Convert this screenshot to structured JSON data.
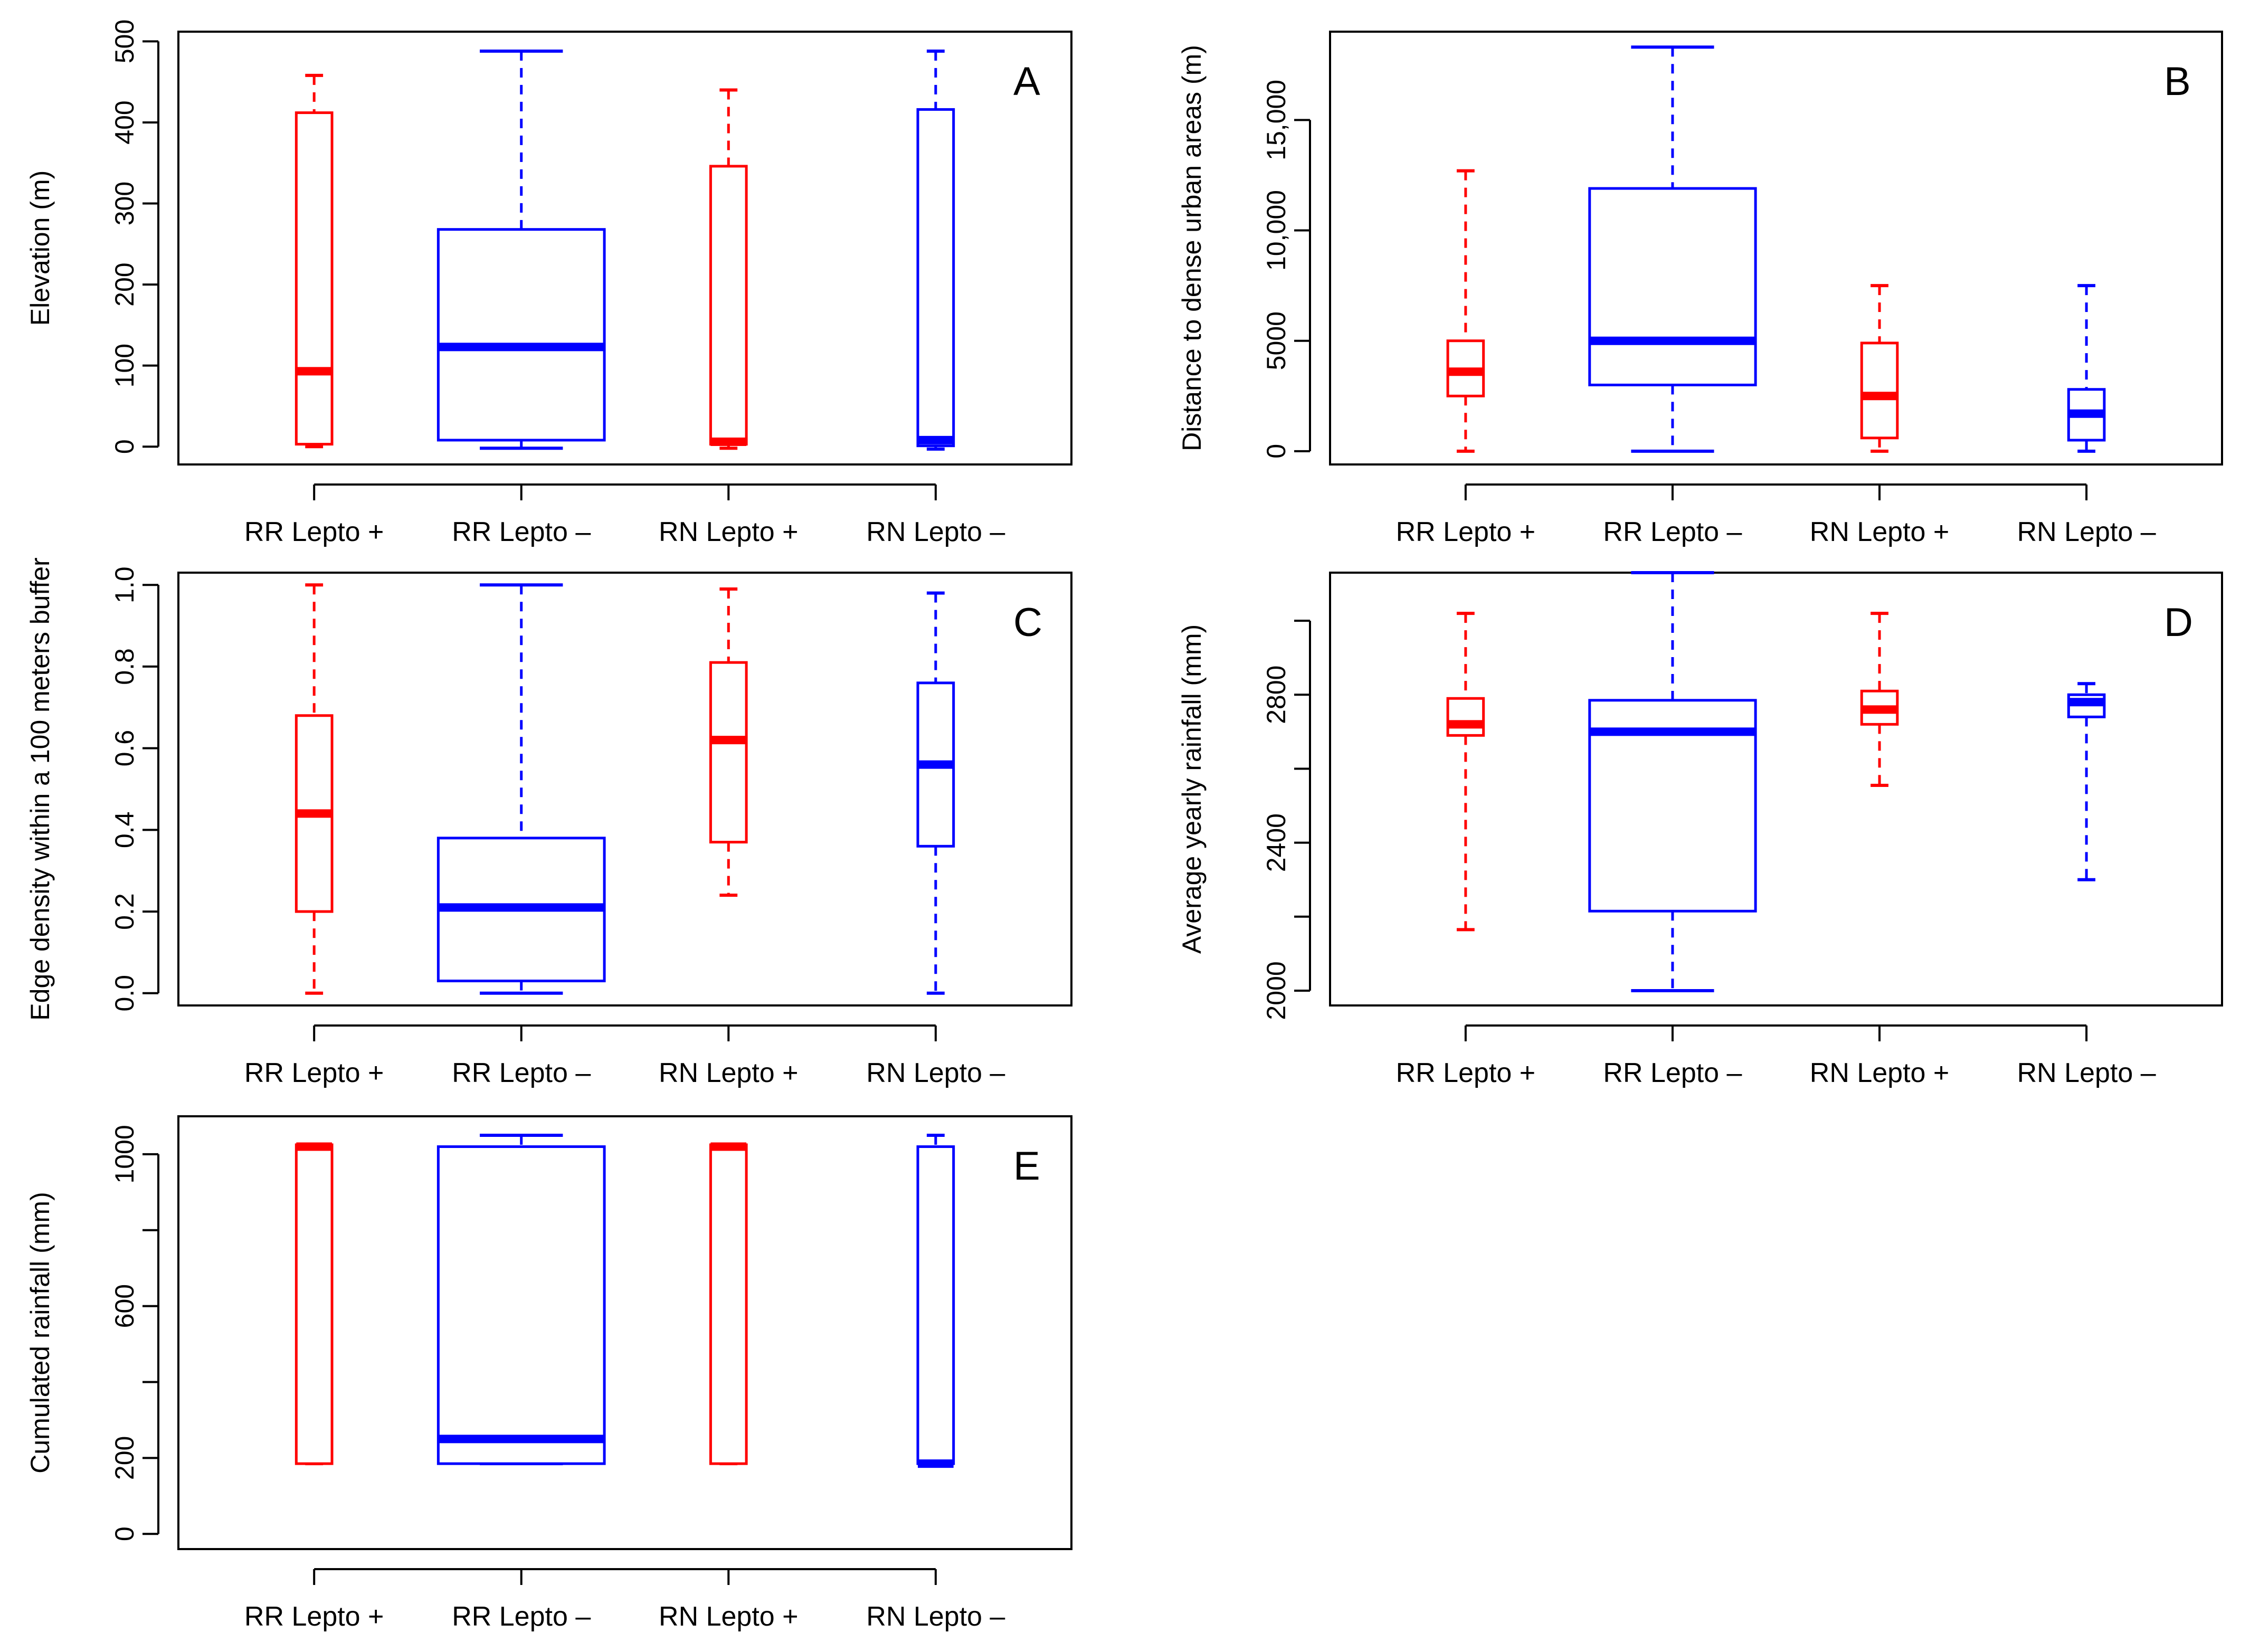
{
  "colors": {
    "positive": "#ff0000",
    "negative": "#0000ff",
    "axis": "#000000"
  },
  "chart_data": [
    {
      "type": "box",
      "panel_label": "A",
      "ylabel": "Elevation (m)",
      "ylim": [
        -22,
        512
      ],
      "yticks": [
        0,
        100,
        200,
        300,
        400,
        500
      ],
      "ytick_labels": [
        "0",
        "100",
        "200",
        "300",
        "400",
        "500"
      ],
      "categories": [
        "RR Lepto +",
        "RR Lepto –",
        "RN Lepto +",
        "RN Lepto –"
      ],
      "series_colors": [
        "#ff0000",
        "#0000ff",
        "#ff0000",
        "#0000ff"
      ],
      "boxes": [
        {
          "whisker_low": 0,
          "q1": 3,
          "median": 93,
          "q3": 412,
          "whisker_high": 458
        },
        {
          "whisker_low": -2,
          "q1": 8,
          "median": 123,
          "q3": 268,
          "whisker_high": 488
        },
        {
          "whisker_low": -2,
          "q1": 3,
          "median": 6,
          "q3": 346,
          "whisker_high": 440
        },
        {
          "whisker_low": -3,
          "q1": 1,
          "median": 8,
          "q3": 416,
          "whisker_high": 488
        }
      ]
    },
    {
      "type": "box",
      "panel_label": "B",
      "ylabel": "Distance to dense urban areas (m)",
      "ylim": [
        -600,
        19000
      ],
      "yticks": [
        0,
        5000,
        10000,
        15000
      ],
      "ytick_labels": [
        "0",
        "5000",
        "10,000",
        "15,000"
      ],
      "categories": [
        "RR Lepto +",
        "RR Lepto –",
        "RN Lepto +",
        "RN Lepto –"
      ],
      "series_colors": [
        "#ff0000",
        "#0000ff",
        "#ff0000",
        "#0000ff"
      ],
      "boxes": [
        {
          "whisker_low": 0,
          "q1": 2500,
          "median": 3600,
          "q3": 5000,
          "whisker_high": 12700
        },
        {
          "whisker_low": 0,
          "q1": 3000,
          "median": 5000,
          "q3": 11900,
          "whisker_high": 18300
        },
        {
          "whisker_low": 0,
          "q1": 600,
          "median": 2500,
          "q3": 4900,
          "whisker_high": 7500
        },
        {
          "whisker_low": 0,
          "q1": 500,
          "median": 1700,
          "q3": 2800,
          "whisker_high": 7500
        }
      ]
    },
    {
      "type": "box",
      "panel_label": "C",
      "ylabel": "Edge density within a 100 meters buffer",
      "ylim": [
        -0.03,
        1.03
      ],
      "yticks": [
        0,
        0.2,
        0.4,
        0.6,
        0.8,
        1.0
      ],
      "ytick_labels": [
        "0.0",
        "0.2",
        "0.4",
        "0.6",
        "0.8",
        "1.0"
      ],
      "categories": [
        "RR Lepto +",
        "RR Lepto –",
        "RN Lepto +",
        "RN Lepto –"
      ],
      "series_colors": [
        "#ff0000",
        "#0000ff",
        "#ff0000",
        "#0000ff"
      ],
      "boxes": [
        {
          "whisker_low": 0.0,
          "q1": 0.2,
          "median": 0.44,
          "q3": 0.68,
          "whisker_high": 1.0
        },
        {
          "whisker_low": 0.0,
          "q1": 0.03,
          "median": 0.21,
          "q3": 0.38,
          "whisker_high": 1.0
        },
        {
          "whisker_low": 0.24,
          "q1": 0.37,
          "median": 0.62,
          "q3": 0.81,
          "whisker_high": 0.99
        },
        {
          "whisker_low": 0.0,
          "q1": 0.36,
          "median": 0.56,
          "q3": 0.76,
          "whisker_high": 0.98
        }
      ]
    },
    {
      "type": "box",
      "panel_label": "D",
      "ylabel": "Average yearly rainfall (mm)",
      "ylim": [
        1960,
        3130
      ],
      "yticks": [
        2000,
        2200,
        2400,
        2600,
        2800,
        3000
      ],
      "ytick_labels": [
        "2000",
        "",
        "2400",
        "",
        "2800",
        ""
      ],
      "categories": [
        "RR Lepto +",
        "RR Lepto –",
        "RN Lepto +",
        "RN Lepto –"
      ],
      "series_colors": [
        "#ff0000",
        "#0000ff",
        "#ff0000",
        "#0000ff"
      ],
      "boxes": [
        {
          "whisker_low": 2165,
          "q1": 2690,
          "median": 2720,
          "q3": 2790,
          "whisker_high": 3020
        },
        {
          "whisker_low": 2000,
          "q1": 2215,
          "median": 2700,
          "q3": 2785,
          "whisker_high": 3130
        },
        {
          "whisker_low": 2555,
          "q1": 2720,
          "median": 2760,
          "q3": 2810,
          "whisker_high": 3020
        },
        {
          "whisker_low": 2300,
          "q1": 2740,
          "median": 2780,
          "q3": 2800,
          "whisker_high": 2830
        }
      ]
    },
    {
      "type": "box",
      "panel_label": "E",
      "ylabel": "Cumulated rainfall (mm)",
      "ylim": [
        -40,
        1100
      ],
      "yticks": [
        0,
        200,
        400,
        600,
        800,
        1000
      ],
      "ytick_labels": [
        "0",
        "200",
        "",
        "600",
        "",
        "1000"
      ],
      "categories": [
        "RR Lepto +",
        "RR Lepto –",
        "RN Lepto +",
        "RN Lepto –"
      ],
      "series_colors": [
        "#ff0000",
        "#0000ff",
        "#ff0000",
        "#0000ff"
      ],
      "boxes": [
        {
          "whisker_low": 185,
          "q1": 185,
          "median": 1020,
          "q3": 1025,
          "whisker_high": 1025
        },
        {
          "whisker_low": 185,
          "q1": 185,
          "median": 250,
          "q3": 1020,
          "whisker_high": 1050
        },
        {
          "whisker_low": 185,
          "q1": 185,
          "median": 1020,
          "q3": 1025,
          "whisker_high": 1025
        },
        {
          "whisker_low": 180,
          "q1": 185,
          "median": 185,
          "q3": 1020,
          "whisker_high": 1050
        }
      ]
    }
  ]
}
